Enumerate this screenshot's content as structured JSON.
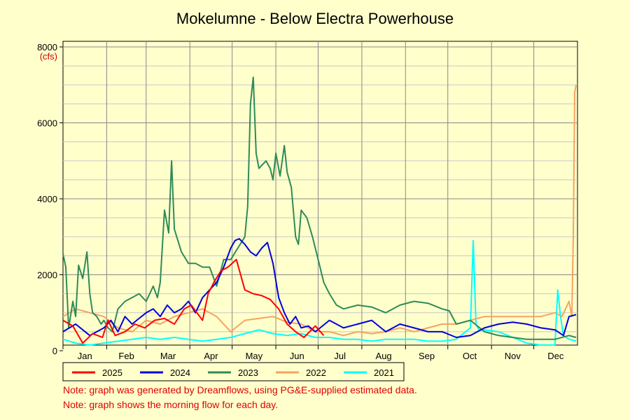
{
  "notes": [
    "Note: graph was generated by Dreamflows, using PG&E-supplied estimated data.",
    "Note: graph shows the morning flow for each day."
  ],
  "chart_data": {
    "type": "line",
    "title": "Mokelumne - Below Electra Powerhouse",
    "ylabel": "(cfs)",
    "xlabel": "",
    "ylim": [
      0,
      8000
    ],
    "yticks": [
      0,
      2000,
      4000,
      6000,
      8000
    ],
    "months": [
      "Jan",
      "Feb",
      "Mar",
      "Apr",
      "May",
      "Jun",
      "Jul",
      "Aug",
      "Sep",
      "Oct",
      "Nov",
      "Dec"
    ],
    "grid": true,
    "legend_position": "bottom",
    "series": [
      {
        "name": "2025",
        "color": "#ff0000",
        "x": [
          1,
          8,
          15,
          22,
          29,
          33,
          38,
          45,
          52,
          59,
          66,
          73,
          80,
          87,
          92,
          96,
          100,
          104,
          108,
          113,
          118,
          124,
          130,
          136,
          142,
          148,
          154,
          160,
          166,
          172,
          180,
          186
        ],
        "y": [
          800,
          650,
          200,
          450,
          350,
          800,
          400,
          500,
          700,
          600,
          800,
          850,
          700,
          1100,
          1200,
          1000,
          800,
          1500,
          1800,
          2100,
          2200,
          2400,
          1600,
          1500,
          1450,
          1350,
          1100,
          700,
          500,
          350,
          650,
          400
        ]
      },
      {
        "name": "2024",
        "color": "#0000dd",
        "x": [
          1,
          10,
          20,
          30,
          35,
          40,
          45,
          50,
          55,
          60,
          65,
          70,
          75,
          80,
          85,
          90,
          95,
          100,
          105,
          110,
          115,
          120,
          123,
          126,
          130,
          134,
          138,
          142,
          146,
          150,
          154,
          158,
          162,
          166,
          170,
          175,
          180,
          190,
          200,
          210,
          220,
          230,
          240,
          250,
          260,
          270,
          280,
          290,
          300,
          310,
          320,
          330,
          340,
          350,
          356,
          360,
          365
        ],
        "y": [
          500,
          700,
          400,
          600,
          800,
          500,
          900,
          700,
          850,
          1000,
          1100,
          900,
          1200,
          1000,
          1100,
          1300,
          1000,
          1400,
          1600,
          1800,
          2200,
          2700,
          2900,
          2950,
          2800,
          2600,
          2500,
          2700,
          2850,
          2300,
          1400,
          1000,
          700,
          900,
          600,
          650,
          500,
          800,
          600,
          700,
          800,
          500,
          700,
          600,
          500,
          500,
          350,
          400,
          600,
          700,
          750,
          700,
          600,
          550,
          400,
          900,
          950
        ]
      },
      {
        "name": "2023",
        "color": "#2e8b57",
        "x": [
          1,
          3,
          5,
          8,
          10,
          12,
          15,
          18,
          20,
          22,
          25,
          28,
          30,
          33,
          36,
          38,
          40,
          45,
          50,
          55,
          60,
          65,
          68,
          70,
          73,
          75,
          76,
          78,
          80,
          85,
          90,
          95,
          100,
          105,
          110,
          115,
          120,
          125,
          130,
          132,
          134,
          136,
          138,
          140,
          145,
          148,
          150,
          152,
          155,
          158,
          160,
          163,
          166,
          168,
          170,
          174,
          178,
          182,
          186,
          190,
          195,
          200,
          210,
          220,
          230,
          240,
          250,
          260,
          270,
          275,
          280,
          290,
          300,
          310,
          320,
          330,
          340,
          350,
          360,
          365
        ],
        "y": [
          2550,
          2200,
          600,
          1300,
          900,
          2250,
          1900,
          2600,
          1500,
          1000,
          900,
          700,
          800,
          600,
          500,
          800,
          1100,
          1300,
          1400,
          1500,
          1300,
          1700,
          1400,
          1800,
          3700,
          3300,
          3100,
          5000,
          3200,
          2600,
          2300,
          2300,
          2200,
          2200,
          1700,
          2400,
          2400,
          2700,
          3000,
          3800,
          6500,
          7200,
          5200,
          4800,
          5000,
          4800,
          4500,
          5200,
          4600,
          5400,
          4700,
          4300,
          3000,
          2800,
          3700,
          3500,
          3000,
          2400,
          1800,
          1500,
          1200,
          1100,
          1200,
          1150,
          1000,
          1200,
          1300,
          1250,
          1100,
          1050,
          700,
          800,
          500,
          400,
          350,
          300,
          300,
          300,
          400,
          350
        ]
      },
      {
        "name": "2022",
        "color": "#f4a460",
        "x": [
          1,
          10,
          20,
          30,
          40,
          50,
          60,
          70,
          80,
          90,
          100,
          110,
          120,
          130,
          140,
          150,
          160,
          170,
          180,
          190,
          200,
          210,
          220,
          230,
          240,
          250,
          260,
          270,
          280,
          290,
          300,
          310,
          320,
          330,
          340,
          350,
          355,
          360,
          362,
          363,
          364,
          365
        ],
        "y": [
          900,
          1100,
          1000,
          900,
          600,
          500,
          800,
          700,
          900,
          1000,
          1100,
          900,
          500,
          800,
          850,
          900,
          750,
          700,
          500,
          500,
          400,
          500,
          450,
          500,
          600,
          500,
          600,
          700,
          700,
          800,
          900,
          900,
          900,
          900,
          900,
          1000,
          900,
          1300,
          900,
          3000,
          6800,
          7000
        ]
      },
      {
        "name": "2021",
        "color": "#00ffff",
        "x": [
          1,
          10,
          20,
          30,
          40,
          50,
          60,
          70,
          80,
          90,
          100,
          110,
          120,
          130,
          140,
          150,
          160,
          170,
          180,
          190,
          200,
          210,
          220,
          230,
          240,
          250,
          260,
          270,
          280,
          290,
          292,
          294,
          296,
          300,
          310,
          320,
          330,
          340,
          345,
          350,
          352,
          354,
          356,
          360,
          365
        ],
        "y": [
          300,
          200,
          150,
          200,
          250,
          300,
          350,
          300,
          350,
          300,
          250,
          300,
          350,
          450,
          550,
          450,
          400,
          450,
          350,
          350,
          300,
          300,
          250,
          300,
          300,
          300,
          250,
          250,
          300,
          600,
          2900,
          700,
          550,
          550,
          500,
          350,
          200,
          150,
          150,
          150,
          1600,
          900,
          400,
          300,
          250
        ]
      }
    ]
  }
}
